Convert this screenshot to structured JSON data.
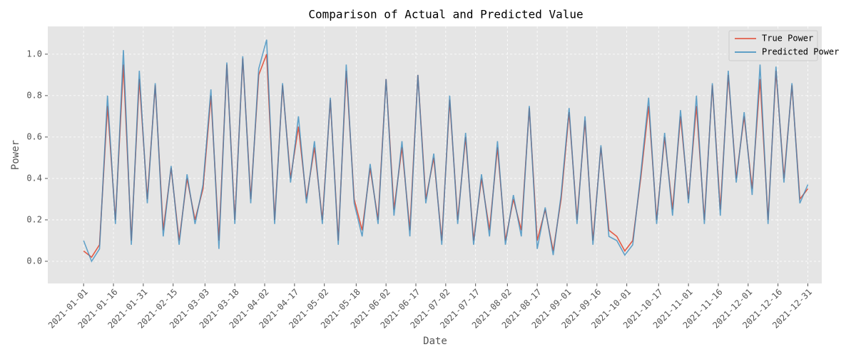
{
  "chart_data": {
    "type": "line",
    "title": "Comparison of Actual and Predicted Value",
    "x_label": "Date",
    "y_label": "Power",
    "x": [
      "2021-01-01",
      "2021-01-05",
      "2021-01-09",
      "2021-01-13",
      "2021-01-17",
      "2021-01-21",
      "2021-01-25",
      "2021-01-29",
      "2021-02-02",
      "2021-02-06",
      "2021-02-10",
      "2021-02-14",
      "2021-02-18",
      "2021-02-22",
      "2021-02-26",
      "2021-03-02",
      "2021-03-06",
      "2021-03-10",
      "2021-03-14",
      "2021-03-18",
      "2021-03-22",
      "2021-03-26",
      "2021-03-30",
      "2021-04-03",
      "2021-04-07",
      "2021-04-11",
      "2021-04-15",
      "2021-04-19",
      "2021-04-23",
      "2021-04-27",
      "2021-05-01",
      "2021-05-05",
      "2021-05-09",
      "2021-05-13",
      "2021-05-17",
      "2021-05-21",
      "2021-05-25",
      "2021-05-29",
      "2021-06-02",
      "2021-06-06",
      "2021-06-10",
      "2021-06-14",
      "2021-06-18",
      "2021-06-22",
      "2021-06-26",
      "2021-06-30",
      "2021-07-04",
      "2021-07-08",
      "2021-07-12",
      "2021-07-16",
      "2021-07-20",
      "2021-07-24",
      "2021-07-28",
      "2021-08-01",
      "2021-08-05",
      "2021-08-09",
      "2021-08-13",
      "2021-08-17",
      "2021-08-21",
      "2021-08-25",
      "2021-08-29",
      "2021-09-02",
      "2021-09-06",
      "2021-09-10",
      "2021-09-14",
      "2021-09-18",
      "2021-09-22",
      "2021-09-26",
      "2021-09-30",
      "2021-10-04",
      "2021-10-08",
      "2021-10-12",
      "2021-10-16",
      "2021-10-20",
      "2021-10-24",
      "2021-10-28",
      "2021-11-01",
      "2021-11-05",
      "2021-11-09",
      "2021-11-13",
      "2021-11-17",
      "2021-11-21",
      "2021-11-25",
      "2021-11-29",
      "2021-12-03",
      "2021-12-07",
      "2021-12-11",
      "2021-12-15",
      "2021-12-19",
      "2021-12-23",
      "2021-12-27",
      "2021-12-31"
    ],
    "series": [
      {
        "name": "True Power",
        "color": "#e24a33",
        "values": [
          0.05,
          0.02,
          0.08,
          0.75,
          0.2,
          0.95,
          0.1,
          0.88,
          0.3,
          0.85,
          0.15,
          0.45,
          0.1,
          0.4,
          0.2,
          0.35,
          0.8,
          0.1,
          0.95,
          0.2,
          0.98,
          0.3,
          0.9,
          1.0,
          0.2,
          0.85,
          0.4,
          0.65,
          0.3,
          0.55,
          0.2,
          0.78,
          0.1,
          0.92,
          0.3,
          0.15,
          0.45,
          0.2,
          0.88,
          0.25,
          0.55,
          0.15,
          0.9,
          0.3,
          0.5,
          0.1,
          0.78,
          0.2,
          0.6,
          0.1,
          0.4,
          0.15,
          0.55,
          0.1,
          0.3,
          0.15,
          0.74,
          0.1,
          0.25,
          0.05,
          0.3,
          0.72,
          0.2,
          0.68,
          0.1,
          0.55,
          0.15,
          0.12,
          0.05,
          0.1,
          0.4,
          0.75,
          0.2,
          0.6,
          0.25,
          0.7,
          0.3,
          0.75,
          0.2,
          0.85,
          0.25,
          0.9,
          0.4,
          0.7,
          0.35,
          0.88,
          0.2,
          0.92,
          0.4,
          0.85,
          0.3,
          0.35
        ]
      },
      {
        "name": "Predicted Power",
        "color": "#348abd",
        "values": [
          0.1,
          0.0,
          0.06,
          0.8,
          0.18,
          1.02,
          0.08,
          0.92,
          0.28,
          0.86,
          0.12,
          0.46,
          0.08,
          0.42,
          0.18,
          0.37,
          0.83,
          0.06,
          0.96,
          0.18,
          0.99,
          0.28,
          0.93,
          1.07,
          0.18,
          0.86,
          0.38,
          0.7,
          0.28,
          0.58,
          0.18,
          0.79,
          0.08,
          0.95,
          0.28,
          0.12,
          0.47,
          0.18,
          0.88,
          0.22,
          0.58,
          0.12,
          0.9,
          0.28,
          0.52,
          0.08,
          0.8,
          0.18,
          0.62,
          0.08,
          0.42,
          0.12,
          0.58,
          0.08,
          0.32,
          0.12,
          0.75,
          0.06,
          0.26,
          0.03,
          0.32,
          0.74,
          0.18,
          0.7,
          0.08,
          0.56,
          0.12,
          0.1,
          0.03,
          0.08,
          0.42,
          0.79,
          0.18,
          0.62,
          0.22,
          0.73,
          0.28,
          0.8,
          0.18,
          0.86,
          0.22,
          0.92,
          0.38,
          0.72,
          0.32,
          0.95,
          0.18,
          0.94,
          0.38,
          0.86,
          0.28,
          0.37
        ]
      }
    ],
    "xlim": [
      "2020-12-14",
      "2022-01-07"
    ],
    "xticks": [
      "2021-01-01",
      "2021-01-16",
      "2021-01-31",
      "2021-02-15",
      "2021-03-03",
      "2021-03-18",
      "2021-04-02",
      "2021-04-17",
      "2021-05-02",
      "2021-05-18",
      "2021-06-02",
      "2021-06-17",
      "2021-07-02",
      "2021-07-17",
      "2021-08-02",
      "2021-08-17",
      "2021-09-01",
      "2021-09-16",
      "2021-10-01",
      "2021-10-17",
      "2021-11-01",
      "2021-11-16",
      "2021-12-01",
      "2021-12-16",
      "2021-12-31"
    ],
    "ylim": [
      -0.107,
      1.134
    ],
    "yticks": [
      {
        "value": 0,
        "label": "0.0"
      },
      0.2,
      0.4,
      0.6,
      0.8,
      {
        "value": 1,
        "label": "1.0"
      }
    ],
    "grid": true,
    "legend": "upper right"
  }
}
